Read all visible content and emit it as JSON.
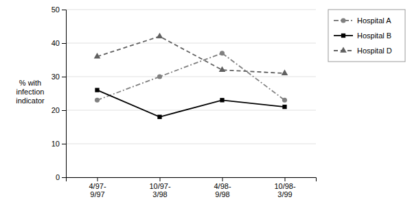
{
  "chart_data": {
    "type": "line",
    "y_label": "% with\ninfection\nindicator",
    "categories": [
      "4/97-\n9/97",
      "10/97-\n3/98",
      "4/98-\n9/98",
      "10/98-\n3/99"
    ],
    "series": [
      {
        "name": "Hospital A",
        "color": "#808080",
        "marker": "circle",
        "line_style": "dashdot",
        "values": [
          23,
          30,
          37,
          23
        ]
      },
      {
        "name": "Hospital B",
        "color": "#000000",
        "marker": "square",
        "line_style": "solid",
        "values": [
          26,
          18,
          23,
          21
        ]
      },
      {
        "name": "Hospital D",
        "color": "#606060",
        "marker": "triangle",
        "line_style": "dashed",
        "values": [
          36,
          42,
          32,
          31
        ]
      }
    ],
    "ylim": [
      0,
      50
    ],
    "yticks": [
      0,
      10,
      20,
      30,
      40,
      50
    ],
    "grid": true,
    "legend": "right"
  }
}
